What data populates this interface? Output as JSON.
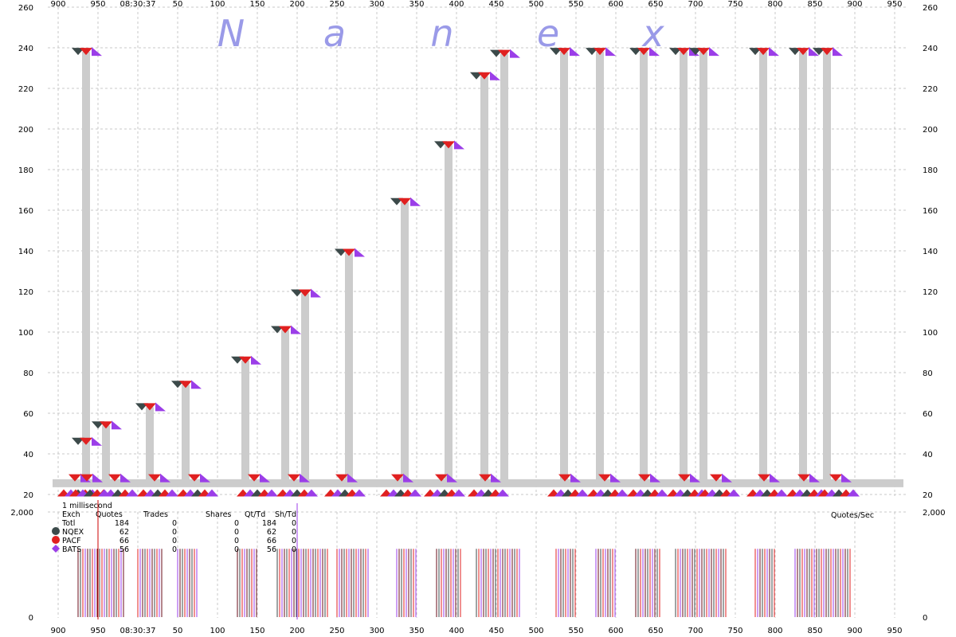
{
  "watermark": [
    "N",
    "a",
    "n",
    "e",
    "x"
  ],
  "top_axis_labels": [
    "900",
    "950",
    "08:30:37",
    "50",
    "100",
    "150",
    "200",
    "250",
    "300",
    "350",
    "400",
    "450",
    "500",
    "550",
    "600",
    "650",
    "700",
    "750",
    "800",
    "850",
    "900",
    "950"
  ],
  "bottom_axis_labels": [
    "900",
    "950",
    "08:30:37",
    "50",
    "100",
    "150",
    "200",
    "250",
    "300",
    "350",
    "400",
    "450",
    "500",
    "550",
    "600",
    "650",
    "700",
    "750",
    "800",
    "850",
    "900",
    "950"
  ],
  "price_ticks": [
    "20",
    "40",
    "60",
    "80",
    "100",
    "120",
    "140",
    "160",
    "180",
    "200",
    "220",
    "240",
    "260"
  ],
  "rate_ticks": [
    "0",
    "2,000"
  ],
  "stats": {
    "interval": "1 millisecond",
    "headers": [
      "Exch",
      "Quotes",
      "Trades",
      "Shares",
      "Qt/Td",
      "Sh/Td"
    ],
    "rows": [
      {
        "exch": "Totl",
        "quotes": "184",
        "trades": "0",
        "shares": "0",
        "qttd": "184",
        "shtd": "0"
      },
      {
        "exch": "NQEX",
        "quotes": "62",
        "trades": "0",
        "shares": "0",
        "qttd": "62",
        "shtd": "0"
      },
      {
        "exch": "PACF",
        "quotes": "66",
        "trades": "0",
        "shares": "0",
        "qttd": "66",
        "shtd": "0"
      },
      {
        "exch": "BATS",
        "quotes": "56",
        "trades": "0",
        "shares": "0",
        "qttd": "56",
        "shtd": "0"
      }
    ],
    "rate_label": "Quotes/Sec"
  },
  "colors": {
    "NQEX": "#3c4a4a",
    "PACF": "#e02020",
    "BATS": "#9b3ee8",
    "spread": "#cccccc",
    "grid": "#c8c8c8",
    "watermark": "#9a9ae8",
    "marker_line": "#cc0000",
    "cursor_line": "#9b3ee8"
  },
  "chart_data": [
    {
      "type": "scatter",
      "title": "",
      "xlabel": "",
      "ylabel": "",
      "ylim": [
        20,
        260
      ],
      "grid": true,
      "x_ticks": [
        "900",
        "950",
        "08:30:37",
        "50",
        "100",
        "150",
        "200",
        "250",
        "300",
        "350",
        "400",
        "450",
        "500",
        "550",
        "600",
        "650",
        "700",
        "750",
        "800",
        "850",
        "900",
        "950"
      ],
      "bid_baseline": [
        {
          "x": 925,
          "y": 21
        },
        {
          "x": 975,
          "y": 21
        },
        {
          "x": 25,
          "y": 21
        },
        {
          "x": 75,
          "y": 21
        },
        {
          "x": 150,
          "y": 21
        },
        {
          "x": 200,
          "y": 21
        },
        {
          "x": 260,
          "y": 21
        },
        {
          "x": 330,
          "y": 21
        },
        {
          "x": 385,
          "y": 21
        },
        {
          "x": 440,
          "y": 21
        },
        {
          "x": 540,
          "y": 21
        },
        {
          "x": 590,
          "y": 21
        },
        {
          "x": 640,
          "y": 21
        },
        {
          "x": 690,
          "y": 21
        },
        {
          "x": 730,
          "y": 21
        },
        {
          "x": 790,
          "y": 21
        },
        {
          "x": 840,
          "y": 21
        },
        {
          "x": 880,
          "y": 21
        },
        {
          "x": 940,
          "y": 21
        }
      ],
      "ask_excursions": [
        {
          "x": 935,
          "y": 46
        },
        {
          "x": 960,
          "y": 54
        },
        {
          "x": 15,
          "y": 63
        },
        {
          "x": 60,
          "y": 74
        },
        {
          "x": 135,
          "y": 86
        },
        {
          "x": 185,
          "y": 101
        },
        {
          "x": 210,
          "y": 119
        },
        {
          "x": 265,
          "y": 139
        },
        {
          "x": 335,
          "y": 164
        },
        {
          "x": 390,
          "y": 192
        },
        {
          "x": 435,
          "y": 226
        },
        {
          "x": 460,
          "y": 237
        },
        {
          "x": 535,
          "y": 238
        },
        {
          "x": 580,
          "y": 238
        },
        {
          "x": 635,
          "y": 238
        },
        {
          "x": 685,
          "y": 238
        },
        {
          "x": 710,
          "y": 238
        },
        {
          "x": 785,
          "y": 238
        },
        {
          "x": 835,
          "y": 238
        },
        {
          "x": 865,
          "y": 238
        },
        {
          "x": 935,
          "y": 238
        }
      ],
      "series": [
        {
          "name": "NQEX"
        },
        {
          "name": "PACF"
        },
        {
          "name": "BATS"
        }
      ]
    },
    {
      "type": "bar",
      "title": "",
      "ylabel": "Quotes/Sec",
      "ylim": [
        0,
        2000
      ],
      "bursts": [
        {
          "x_from": 925,
          "x_to": 982
        },
        {
          "x_from": 0,
          "x_to": 32
        },
        {
          "x_from": 50,
          "x_to": 75
        },
        {
          "x_from": 125,
          "x_to": 150
        },
        {
          "x_from": 175,
          "x_to": 240
        },
        {
          "x_from": 250,
          "x_to": 290
        },
        {
          "x_from": 325,
          "x_to": 350
        },
        {
          "x_from": 375,
          "x_to": 405
        },
        {
          "x_from": 425,
          "x_to": 480
        },
        {
          "x_from": 525,
          "x_to": 550
        },
        {
          "x_from": 575,
          "x_to": 600
        },
        {
          "x_from": 625,
          "x_to": 655
        },
        {
          "x_from": 675,
          "x_to": 740
        },
        {
          "x_from": 775,
          "x_to": 800
        },
        {
          "x_from": 825,
          "x_to": 895
        },
        {
          "x_from": 925,
          "x_to": 960
        }
      ],
      "burst_level": 1300
    }
  ]
}
